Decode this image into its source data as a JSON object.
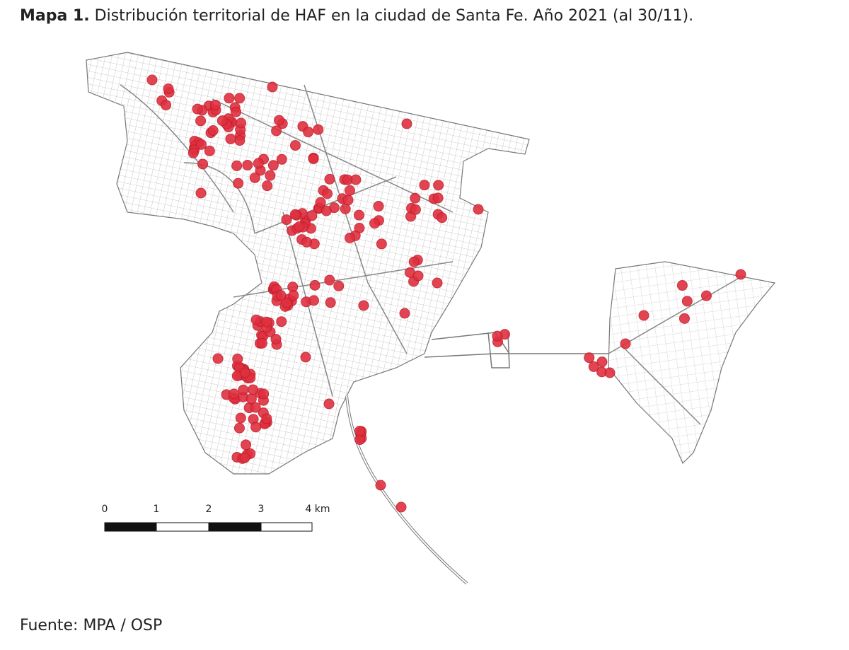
{
  "header": {
    "label": "Mapa 1.",
    "title": "Distribución territorial de HAF en la ciudad de Santa Fe. Año 2021 (al 30/11)."
  },
  "scale_bar": {
    "labels": [
      "0",
      "1",
      "2",
      "3",
      "4 km"
    ]
  },
  "footer": {
    "source": "Fuente: MPA / OSP"
  }
}
